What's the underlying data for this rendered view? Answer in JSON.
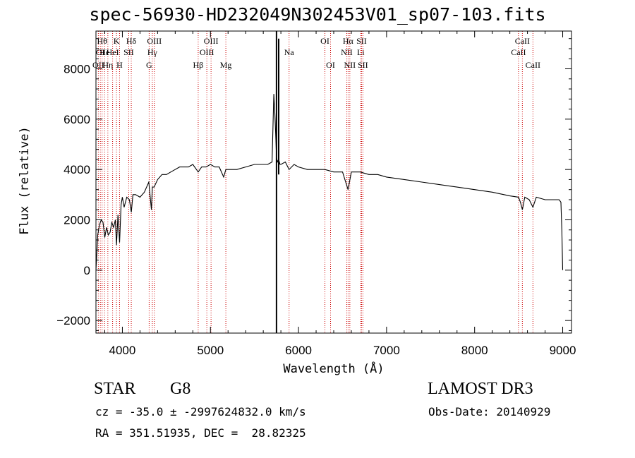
{
  "chart_data": {
    "type": "line",
    "title": "spec-56930-HD232049N302453V01_sp07-103.fits",
    "xlabel": "Wavelength (Å)",
    "ylabel": "Flux (relative)",
    "xlim": [
      3700,
      9100
    ],
    "ylim": [
      -2500,
      9500
    ],
    "xticks": [
      4000,
      5000,
      6000,
      7000,
      8000,
      9000
    ],
    "yticks": [
      -2000,
      0,
      2000,
      4000,
      6000,
      8000
    ],
    "grid": false,
    "series": [
      {
        "x": [
          3700,
          3720,
          3740,
          3760,
          3780,
          3800,
          3820,
          3840,
          3860,
          3880,
          3900,
          3920,
          3933,
          3950,
          3968,
          3985,
          4000,
          4020,
          4050,
          4080,
          4101,
          4120,
          4150,
          4200,
          4250,
          4300,
          4330,
          4340,
          4360,
          4400,
          4450,
          4500,
          4550,
          4600,
          4650,
          4700,
          4750,
          4800,
          4861,
          4900,
          4950,
          5000,
          5050,
          5100,
          5150,
          5175,
          5200,
          5300,
          5400,
          5500,
          5600,
          5650,
          5700,
          5720,
          5730,
          5740,
          5750,
          5760,
          5775,
          5790,
          5800,
          5850,
          5893,
          5950,
          6000,
          6100,
          6200,
          6300,
          6400,
          6500,
          6563,
          6600,
          6700,
          6800,
          6900,
          7000,
          7200,
          7400,
          7600,
          7800,
          8000,
          8200,
          8400,
          8498,
          8520,
          8542,
          8570,
          8620,
          8662,
          8700,
          8800,
          8900,
          8960,
          8980,
          8990,
          9000
        ],
        "y": [
          0,
          1400,
          1800,
          2000,
          1900,
          1300,
          1700,
          1400,
          1500,
          1900,
          1700,
          2000,
          1000,
          2200,
          1100,
          2600,
          2900,
          2500,
          2900,
          2800,
          2300,
          3000,
          3000,
          2900,
          3100,
          3500,
          2400,
          3300,
          3300,
          3600,
          3800,
          3800,
          3900,
          4000,
          4100,
          4100,
          4100,
          4200,
          3900,
          4100,
          4100,
          4200,
          4100,
          4100,
          3700,
          4000,
          4000,
          4000,
          4100,
          4200,
          4200,
          4200,
          4300,
          7000,
          6300,
          5500,
          4500,
          4300,
          4400,
          4200,
          4200,
          4300,
          4000,
          4200,
          4100,
          4000,
          4000,
          4000,
          3900,
          3900,
          3200,
          3900,
          3900,
          3800,
          3800,
          3700,
          3600,
          3500,
          3400,
          3300,
          3200,
          3100,
          2950,
          2900,
          2700,
          2400,
          2900,
          2800,
          2500,
          2900,
          2800,
          2800,
          2800,
          2700,
          1600,
          0
        ]
      }
    ],
    "spikes": [
      {
        "x": 5750,
        "y_min": -2500,
        "y_max": 9500
      },
      {
        "x": 5775,
        "y_min": 3800,
        "y_max": 9200
      }
    ],
    "line_markers": [
      {
        "x": 3727,
        "label": "OII",
        "row": 3
      },
      {
        "x": 3750,
        "label": "OI",
        "row": 2
      },
      {
        "x": 3770,
        "label": "Hθ",
        "row": 1
      },
      {
        "x": 3798,
        "label": "He",
        "row": 2
      },
      {
        "x": 3835,
        "label": "Hη",
        "row": 3
      },
      {
        "x": 3889,
        "label": "HeI",
        "row": 2
      },
      {
        "x": 3933,
        "label": "K",
        "row": 1
      },
      {
        "x": 3968,
        "label": "H",
        "row": 3
      },
      {
        "x": 4072,
        "label": "SII",
        "row": 2
      },
      {
        "x": 4101,
        "label": "Hδ",
        "row": 1
      },
      {
        "x": 4304,
        "label": "G",
        "row": 3
      },
      {
        "x": 4340,
        "label": "Hγ",
        "row": 2
      },
      {
        "x": 4363,
        "label": "OIII",
        "row": 1
      },
      {
        "x": 4861,
        "label": "Hβ",
        "row": 3
      },
      {
        "x": 4959,
        "label": "OIII",
        "row": 2
      },
      {
        "x": 5007,
        "label": "OIII",
        "row": 1
      },
      {
        "x": 5175,
        "label": "Mg",
        "row": 3
      },
      {
        "x": 5893,
        "label": "Na",
        "row": 2
      },
      {
        "x": 6300,
        "label": "OI",
        "row": 1
      },
      {
        "x": 6364,
        "label": "OI",
        "row": 3
      },
      {
        "x": 6548,
        "label": "NII",
        "row": 2
      },
      {
        "x": 6563,
        "label": "Hα",
        "row": 1
      },
      {
        "x": 6583,
        "label": "NII",
        "row": 3
      },
      {
        "x": 6707,
        "label": "Li",
        "row": 2
      },
      {
        "x": 6716,
        "label": "SII",
        "row": 1
      },
      {
        "x": 6731,
        "label": "SII",
        "row": 3
      },
      {
        "x": 8498,
        "label": "CaII",
        "row": 2
      },
      {
        "x": 8542,
        "label": "CaII",
        "row": 1
      },
      {
        "x": 8662,
        "label": "CaII",
        "row": 3
      }
    ]
  },
  "info": {
    "object_class": "STAR",
    "subclass": "G8",
    "survey": "LAMOST DR3",
    "cz_line": "cz = -35.0 ± -2997624832.0 km/s",
    "obs_date_line": "Obs-Date: 20140929",
    "coord_line": "RA = 351.51935, DEC =  28.82325"
  },
  "colors": {
    "spectrum": "#000000",
    "marker_lines": "#cc0000",
    "axes": "#000000",
    "background": "#ffffff"
  }
}
